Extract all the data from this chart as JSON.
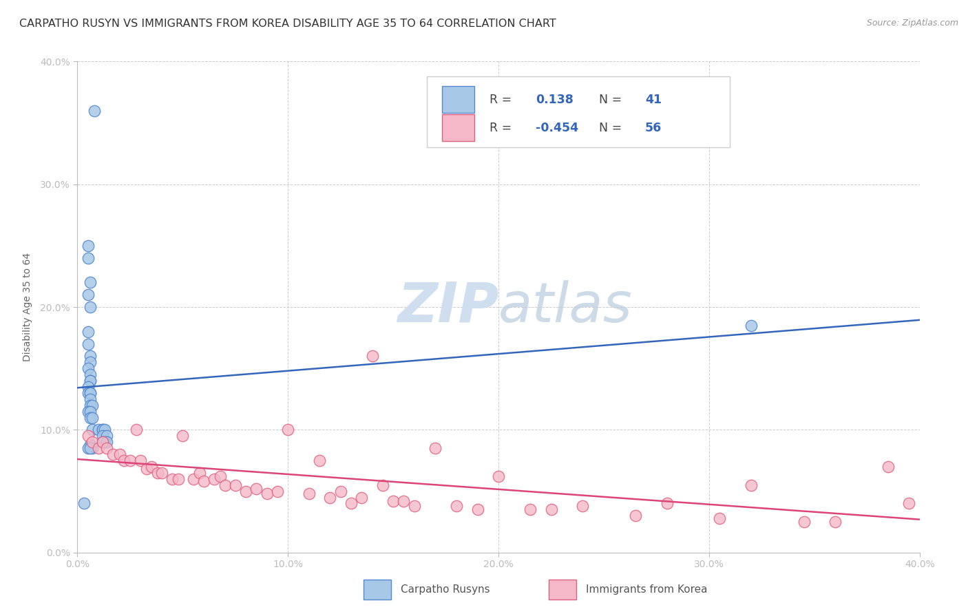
{
  "title": "CARPATHO RUSYN VS IMMIGRANTS FROM KOREA DISABILITY AGE 35 TO 64 CORRELATION CHART",
  "source": "Source: ZipAtlas.com",
  "ylabel": "Disability Age 35 to 64",
  "x_tick_labels": [
    "0.0%",
    "10.0%",
    "20.0%",
    "30.0%",
    "40.0%"
  ],
  "y_tick_labels": [
    "0.0%",
    "10.0%",
    "20.0%",
    "30.0%",
    "40.0%"
  ],
  "xlim": [
    0.0,
    0.4
  ],
  "ylim": [
    0.0,
    0.4
  ],
  "blue_R": 0.138,
  "blue_N": 41,
  "pink_R": -0.454,
  "pink_N": 56,
  "blue_color": "#a8c8e8",
  "pink_color": "#f5b8c8",
  "blue_edge_color": "#5588cc",
  "pink_edge_color": "#e06080",
  "blue_line_color": "#3366bb",
  "pink_line_color": "#dd4477",
  "legend_label_blue": "Carpatho Rusyns",
  "legend_label_pink": "Immigrants from Korea",
  "background_color": "#ffffff",
  "watermark_color": "#d0dff0",
  "title_fontsize": 11.5,
  "axis_label_fontsize": 10,
  "tick_fontsize": 10,
  "blue_scatter_x": [
    0.008,
    0.005,
    0.005,
    0.006,
    0.005,
    0.006,
    0.005,
    0.005,
    0.006,
    0.006,
    0.005,
    0.006,
    0.006,
    0.006,
    0.005,
    0.005,
    0.006,
    0.006,
    0.006,
    0.006,
    0.007,
    0.005,
    0.006,
    0.006,
    0.007,
    0.007,
    0.01,
    0.012,
    0.012,
    0.013,
    0.012,
    0.014,
    0.013,
    0.012,
    0.014,
    0.006,
    0.007,
    0.005,
    0.006,
    0.32,
    0.003
  ],
  "blue_scatter_y": [
    0.36,
    0.25,
    0.24,
    0.22,
    0.21,
    0.2,
    0.18,
    0.17,
    0.16,
    0.155,
    0.15,
    0.145,
    0.14,
    0.14,
    0.135,
    0.13,
    0.13,
    0.13,
    0.125,
    0.12,
    0.12,
    0.115,
    0.115,
    0.11,
    0.11,
    0.1,
    0.1,
    0.1,
    0.1,
    0.1,
    0.095,
    0.095,
    0.09,
    0.09,
    0.09,
    0.088,
    0.085,
    0.085,
    0.085,
    0.185,
    0.04
  ],
  "pink_scatter_x": [
    0.005,
    0.007,
    0.01,
    0.012,
    0.014,
    0.017,
    0.02,
    0.022,
    0.025,
    0.028,
    0.03,
    0.033,
    0.035,
    0.038,
    0.04,
    0.045,
    0.048,
    0.05,
    0.055,
    0.058,
    0.06,
    0.065,
    0.068,
    0.07,
    0.075,
    0.08,
    0.085,
    0.09,
    0.095,
    0.1,
    0.11,
    0.115,
    0.12,
    0.125,
    0.13,
    0.135,
    0.14,
    0.145,
    0.15,
    0.155,
    0.16,
    0.17,
    0.18,
    0.19,
    0.2,
    0.215,
    0.225,
    0.24,
    0.265,
    0.28,
    0.305,
    0.32,
    0.345,
    0.36,
    0.385,
    0.395
  ],
  "pink_scatter_y": [
    0.095,
    0.09,
    0.085,
    0.09,
    0.085,
    0.08,
    0.08,
    0.075,
    0.075,
    0.1,
    0.075,
    0.068,
    0.07,
    0.065,
    0.065,
    0.06,
    0.06,
    0.095,
    0.06,
    0.065,
    0.058,
    0.06,
    0.062,
    0.055,
    0.055,
    0.05,
    0.052,
    0.048,
    0.05,
    0.1,
    0.048,
    0.075,
    0.045,
    0.05,
    0.04,
    0.045,
    0.16,
    0.055,
    0.042,
    0.042,
    0.038,
    0.085,
    0.038,
    0.035,
    0.062,
    0.035,
    0.035,
    0.038,
    0.03,
    0.04,
    0.028,
    0.055,
    0.025,
    0.025,
    0.07,
    0.04
  ]
}
